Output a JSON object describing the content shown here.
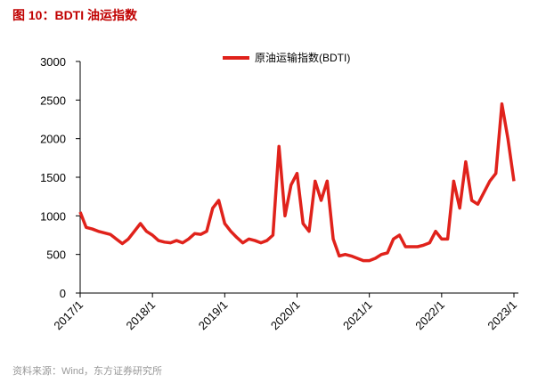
{
  "chart_data": {
    "type": "line",
    "title": "图 10：BDTI 油运指数",
    "source": "资料来源：Wind，东方证券研究所",
    "x": [
      "2017/1",
      "2017/2",
      "2017/3",
      "2017/4",
      "2017/5",
      "2017/6",
      "2017/7",
      "2017/8",
      "2017/9",
      "2017/10",
      "2017/11",
      "2017/12",
      "2018/1",
      "2018/2",
      "2018/3",
      "2018/4",
      "2018/5",
      "2018/6",
      "2018/7",
      "2018/8",
      "2018/9",
      "2018/10",
      "2018/11",
      "2018/12",
      "2019/1",
      "2019/2",
      "2019/3",
      "2019/4",
      "2019/5",
      "2019/6",
      "2019/7",
      "2019/8",
      "2019/9",
      "2019/10",
      "2019/11",
      "2019/12",
      "2020/1",
      "2020/2",
      "2020/3",
      "2020/4",
      "2020/5",
      "2020/6",
      "2020/7",
      "2020/8",
      "2020/9",
      "2020/10",
      "2020/11",
      "2020/12",
      "2021/1",
      "2021/2",
      "2021/3",
      "2021/4",
      "2021/5",
      "2021/6",
      "2021/7",
      "2021/8",
      "2021/9",
      "2021/10",
      "2021/11",
      "2021/12",
      "2022/1",
      "2022/2",
      "2022/3",
      "2022/4",
      "2022/5",
      "2022/6",
      "2022/7",
      "2022/8",
      "2022/9",
      "2022/10",
      "2022/11",
      "2022/12",
      "2023/1"
    ],
    "series": [
      {
        "name": "原油运输指数(BDTI)",
        "color": "#e0221b",
        "values": [
          1050,
          850,
          830,
          800,
          780,
          760,
          700,
          640,
          700,
          800,
          900,
          800,
          750,
          680,
          660,
          650,
          680,
          650,
          700,
          770,
          760,
          800,
          1100,
          1200,
          900,
          800,
          720,
          650,
          700,
          680,
          650,
          680,
          750,
          1900,
          1000,
          1400,
          1550,
          900,
          800,
          1450,
          1200,
          1450,
          700,
          480,
          500,
          480,
          450,
          420,
          420,
          450,
          500,
          520,
          700,
          750,
          600,
          600,
          600,
          620,
          650,
          800,
          700,
          700,
          1450,
          1100,
          1700,
          1200,
          1150,
          1300,
          1450,
          1550,
          2450,
          2000,
          1450
        ]
      }
    ],
    "xticks": [
      "2017/1",
      "2018/1",
      "2019/1",
      "2020/1",
      "2021/1",
      "2022/1",
      "2023/1"
    ],
    "ylim": [
      0,
      3000
    ],
    "yticks": [
      0,
      500,
      1000,
      1500,
      2000,
      2500,
      3000
    ],
    "grid": false
  }
}
